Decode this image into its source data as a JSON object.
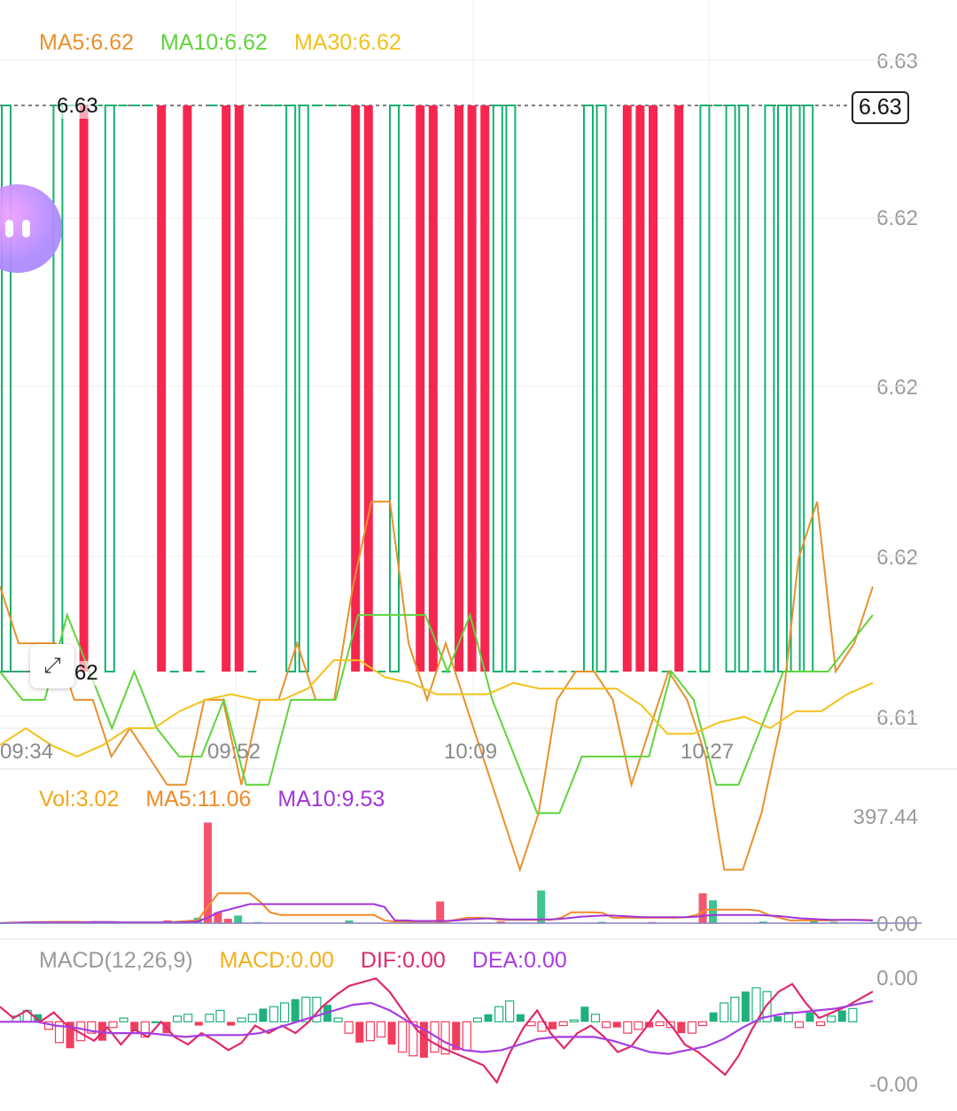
{
  "colors": {
    "up": "#f6274f",
    "down": "#10b26f",
    "ma5": "#e8912c",
    "ma10": "#5fd43a",
    "ma30": "#f2c21a",
    "vol": "#f2a81a",
    "vol_ma5": "#ef8b2a",
    "vol_ma10": "#a236d6",
    "macd": "#f2b01a",
    "dif": "#e0286e",
    "dea": "#a83de0",
    "axis_text": "#9a9a9a",
    "grid": "#eeeeee"
  },
  "legend_main": [
    {
      "label": "MA5:6.62",
      "color_key": "ma5"
    },
    {
      "label": "MA10:6.62",
      "color_key": "ma10"
    },
    {
      "label": "MA30:6.62",
      "color_key": "ma30"
    }
  ],
  "legend_volume": [
    {
      "label": "Vol:3.02",
      "color_key": "vol"
    },
    {
      "label": "MA5:11.06",
      "color_key": "vol_ma5"
    },
    {
      "label": "MA10:9.53",
      "color_key": "vol_ma10"
    }
  ],
  "legend_macd": [
    {
      "label": "MACD(12,26,9)",
      "color_key": "axis_text"
    },
    {
      "label": "MACD:0.00",
      "color_key": "macd"
    },
    {
      "label": "DIF:0.00",
      "color_key": "dif"
    },
    {
      "label": "DEA:0.00",
      "color_key": "dea"
    }
  ],
  "price_axis": {
    "labels": [
      "6.63",
      "6.62",
      "6.62",
      "6.62",
      "6.61"
    ]
  },
  "current_price": "6.63",
  "high_marker": "6.63",
  "low_marker": "6.62",
  "volume_axis": {
    "top": "397.44",
    "bottom": "0.00"
  },
  "macd_axis": {
    "top": "0.00",
    "bottom": "-0.00"
  },
  "time_labels": [
    "09:34",
    "09:52",
    "10:09",
    "10:27"
  ],
  "float_button_icon": "chat-bubble-icon",
  "expand_button_icon": "expand-arrows-icon",
  "chart_data": {
    "type": "candlestick",
    "price_range": [
      6.61,
      6.63
    ],
    "candles": [
      {
        "dir": "down",
        "open": 6.63,
        "close": 6.62
      },
      {
        "dir": "flat",
        "price": 6.62
      },
      {
        "dir": "flat",
        "price": 6.62
      },
      {
        "dir": "flat",
        "price": 6.62
      },
      {
        "dir": "down",
        "open": 6.63,
        "close": 6.62
      },
      {
        "dir": "flat",
        "price": 6.63
      },
      {
        "dir": "up",
        "open": 6.62,
        "close": 6.63
      },
      {
        "dir": "flat",
        "price": 6.63
      },
      {
        "dir": "down",
        "open": 6.63,
        "close": 6.62
      },
      {
        "dir": "flat",
        "price": 6.63
      },
      {
        "dir": "flat",
        "price": 6.63
      },
      {
        "dir": "flat",
        "price": 6.63
      },
      {
        "dir": "up",
        "open": 6.62,
        "close": 6.63
      },
      {
        "dir": "flat",
        "price": 6.62
      },
      {
        "dir": "up",
        "open": 6.62,
        "close": 6.63
      },
      {
        "dir": "flat",
        "price": 6.62
      },
      {
        "dir": "flat",
        "price": 6.63
      },
      {
        "dir": "up",
        "open": 6.62,
        "close": 6.63
      },
      {
        "dir": "up",
        "open": 6.62,
        "close": 6.63
      },
      {
        "dir": "flat",
        "price": 6.62
      },
      {
        "dir": "flat",
        "price": 6.63
      },
      {
        "dir": "flat",
        "price": 6.63
      },
      {
        "dir": "down",
        "open": 6.63,
        "close": 6.62
      },
      {
        "dir": "down",
        "open": 6.63,
        "close": 6.62
      },
      {
        "dir": "flat",
        "price": 6.63
      },
      {
        "dir": "flat",
        "price": 6.63
      },
      {
        "dir": "flat",
        "price": 6.63
      },
      {
        "dir": "up",
        "open": 6.62,
        "close": 6.63
      },
      {
        "dir": "up",
        "open": 6.62,
        "close": 6.63
      },
      {
        "dir": "flat",
        "price": 6.62
      },
      {
        "dir": "down",
        "open": 6.63,
        "close": 6.62
      },
      {
        "dir": "flat",
        "price": 6.63
      },
      {
        "dir": "up",
        "open": 6.62,
        "close": 6.63
      },
      {
        "dir": "up",
        "open": 6.62,
        "close": 6.63
      },
      {
        "dir": "flat",
        "price": 6.62
      },
      {
        "dir": "up",
        "open": 6.62,
        "close": 6.63
      },
      {
        "dir": "up",
        "open": 6.62,
        "close": 6.63
      },
      {
        "dir": "up",
        "open": 6.62,
        "close": 6.63
      },
      {
        "dir": "down",
        "open": 6.63,
        "close": 6.62
      },
      {
        "dir": "down",
        "open": 6.63,
        "close": 6.62
      },
      {
        "dir": "flat",
        "price": 6.62
      },
      {
        "dir": "flat",
        "price": 6.62
      },
      {
        "dir": "flat",
        "price": 6.62
      },
      {
        "dir": "flat",
        "price": 6.62
      },
      {
        "dir": "flat",
        "price": 6.62
      },
      {
        "dir": "down",
        "open": 6.63,
        "close": 6.62
      },
      {
        "dir": "down",
        "open": 6.63,
        "close": 6.62
      },
      {
        "dir": "flat",
        "price": 6.62
      },
      {
        "dir": "up",
        "open": 6.62,
        "close": 6.63
      },
      {
        "dir": "up",
        "open": 6.62,
        "close": 6.63
      },
      {
        "dir": "up",
        "open": 6.62,
        "close": 6.63
      },
      {
        "dir": "flat",
        "price": 6.62
      },
      {
        "dir": "up",
        "open": 6.62,
        "close": 6.63
      },
      {
        "dir": "flat",
        "price": 6.62
      },
      {
        "dir": "down",
        "open": 6.63,
        "close": 6.62
      },
      {
        "dir": "flat",
        "price": 6.63
      },
      {
        "dir": "down",
        "open": 6.63,
        "close": 6.62
      },
      {
        "dir": "down",
        "open": 6.63,
        "close": 6.62
      },
      {
        "dir": "flat",
        "price": 6.62
      },
      {
        "dir": "down",
        "open": 6.63,
        "close": 6.62
      },
      {
        "dir": "down",
        "open": 6.63,
        "close": 6.62
      },
      {
        "dir": "down",
        "open": 6.63,
        "close": 6.62
      },
      {
        "dir": "down",
        "open": 6.63,
        "close": 6.62
      }
    ],
    "ma5": [
      6.6215,
      6.6205,
      6.6205,
      6.6205,
      6.6195,
      6.6195,
      6.6185,
      6.619,
      6.6185,
      6.618,
      6.618,
      6.6195,
      6.6195,
      6.618,
      6.6195,
      6.6195,
      6.6205,
      6.6195,
      6.6195,
      6.6215,
      6.623,
      6.623,
      6.6205,
      6.6195,
      6.6205,
      6.6195,
      6.6185,
      6.6175,
      6.6165,
      6.6175,
      6.6195,
      6.62,
      6.62,
      6.6195,
      6.618,
      6.619,
      6.62,
      6.6195,
      6.6185,
      6.6165,
      6.6165,
      6.6175,
      6.619,
      6.622,
      6.623,
      6.62,
      6.6205,
      6.6215
    ],
    "ma10": [
      6.62,
      6.6195,
      6.6195,
      6.621,
      6.62,
      6.619,
      6.62,
      6.619,
      6.6185,
      6.6185,
      6.6195,
      6.618,
      6.618,
      6.6195,
      6.6195,
      6.6195,
      6.621,
      6.621,
      6.621,
      6.621,
      6.62,
      6.621,
      6.6195,
      6.6185,
      6.6175,
      6.6175,
      6.6185,
      6.6185,
      6.6185,
      6.6185,
      6.62,
      6.6195,
      6.618,
      6.618,
      6.619,
      6.62,
      6.62,
      6.62,
      6.6205,
      6.621
    ],
    "ma30": [
      6.6187,
      6.619,
      6.6187,
      6.6185,
      6.6187,
      6.619,
      6.619,
      6.6193,
      6.6195,
      6.6196,
      6.6195,
      6.6195,
      6.6197,
      6.6202,
      6.6202,
      6.6199,
      6.6198,
      6.6196,
      6.6196,
      6.6196,
      6.6198,
      6.6197,
      6.6197,
      6.6197,
      6.6197,
      6.6194,
      6.6189,
      6.6189,
      6.6191,
      6.6192,
      6.619,
      6.6193,
      6.6193,
      6.6196,
      6.6198
    ]
  },
  "volume_data": {
    "max": 397.44,
    "bars": [
      {
        "i": 0,
        "v": 4,
        "dir": "down"
      },
      {
        "i": 7,
        "v": 8,
        "dir": "up"
      },
      {
        "i": 16,
        "v": 10,
        "dir": "up"
      },
      {
        "i": 19,
        "v": 20,
        "dir": "down"
      },
      {
        "i": 20,
        "v": 370,
        "dir": "up"
      },
      {
        "i": 21,
        "v": 40,
        "dir": "up"
      },
      {
        "i": 22,
        "v": 16,
        "dir": "up"
      },
      {
        "i": 23,
        "v": 28,
        "dir": "down"
      },
      {
        "i": 25,
        "v": 4,
        "dir": "down"
      },
      {
        "i": 34,
        "v": 10,
        "dir": "down"
      },
      {
        "i": 40,
        "v": 8,
        "dir": "down"
      },
      {
        "i": 43,
        "v": 80,
        "dir": "up"
      },
      {
        "i": 49,
        "v": 6,
        "dir": "up"
      },
      {
        "i": 53,
        "v": 120,
        "dir": "down"
      },
      {
        "i": 59,
        "v": 5,
        "dir": "down"
      },
      {
        "i": 64,
        "v": 4,
        "dir": "up"
      },
      {
        "i": 69,
        "v": 110,
        "dir": "up"
      },
      {
        "i": 70,
        "v": 84,
        "dir": "down"
      },
      {
        "i": 75,
        "v": 6,
        "dir": "down"
      },
      {
        "i": 80,
        "v": 8,
        "dir": "down"
      },
      {
        "i": 82,
        "v": 5,
        "dir": "down"
      },
      {
        "i": 86,
        "v": 4,
        "dir": "down"
      }
    ],
    "ma5": [
      0,
      2,
      3,
      4,
      4,
      5,
      5,
      5,
      4,
      4,
      4,
      3,
      3,
      3,
      3,
      3,
      3,
      5,
      8,
      10,
      60,
      110,
      110,
      110,
      110,
      80,
      40,
      30,
      30,
      30,
      30,
      30,
      30,
      30,
      30,
      30,
      30,
      10,
      6,
      6,
      6,
      6,
      6,
      6,
      14,
      20,
      20,
      18,
      12,
      12,
      12,
      12,
      12,
      12,
      20,
      40,
      40,
      40,
      38,
      20,
      20,
      20,
      20,
      20,
      20,
      20,
      22,
      30,
      50,
      50,
      50,
      50,
      50,
      46,
      30,
      20,
      10,
      10,
      10,
      10,
      10,
      12,
      12,
      12,
      11
    ],
    "ma10": [
      0,
      1,
      2,
      3,
      3,
      3,
      3,
      3,
      3,
      4,
      4,
      4,
      3,
      3,
      3,
      3,
      3,
      3,
      4,
      6,
      20,
      40,
      50,
      60,
      70,
      70,
      70,
      70,
      70,
      70,
      70,
      70,
      70,
      70,
      70,
      70,
      70,
      60,
      10,
      10,
      8,
      8,
      8,
      8,
      10,
      14,
      16,
      18,
      16,
      14,
      14,
      14,
      14,
      14,
      16,
      20,
      24,
      26,
      28,
      28,
      26,
      24,
      22,
      22,
      22,
      22,
      22,
      24,
      28,
      30,
      30,
      30,
      30,
      30,
      28,
      26,
      22,
      18,
      16,
      14,
      12,
      12,
      12,
      11,
      10
    ]
  },
  "macd_data": {
    "bars": [
      0.0,
      0.3,
      0.6,
      0.4,
      -0.4,
      -1.1,
      -1.4,
      -1.0,
      -0.6,
      -1.0,
      -0.3,
      0.2,
      -0.5,
      -0.8,
      0.0,
      -0.6,
      0.3,
      0.4,
      -0.2,
      0.4,
      0.6,
      -0.2,
      0.2,
      0.4,
      0.7,
      0.8,
      1.0,
      1.2,
      1.3,
      1.3,
      0.9,
      0.2,
      -0.6,
      -1.1,
      -1.0,
      -0.8,
      -1.2,
      -1.6,
      -1.8,
      -1.9,
      -1.6,
      -1.7,
      -1.5,
      -1.5,
      0.2,
      0.4,
      0.8,
      1.1,
      0.4,
      -0.2,
      -0.5,
      -0.4,
      -0.2,
      0.1,
      0.8,
      0.4,
      -0.3,
      -0.3,
      -0.6,
      -0.4,
      -0.3,
      -0.2,
      -0.3,
      -0.6,
      -0.6,
      -0.2,
      0.5,
      1.0,
      1.3,
      1.6,
      1.8,
      1.6,
      0.3,
      0.5,
      -0.3,
      0.5,
      -0.2,
      0.3,
      0.6,
      0.7
    ],
    "dif": [
      0.8,
      0.2,
      0.6,
      0.0,
      0.5,
      -0.2,
      -0.6,
      -1.0,
      -0.3,
      -1.2,
      -0.4,
      -0.8,
      0.0,
      -0.8,
      -1.2,
      -0.6,
      -1.0,
      -1.5,
      -1.1,
      -0.2,
      -0.6,
      -0.2,
      -0.6,
      0.0,
      0.8,
      1.4,
      1.9,
      2.1,
      2.3,
      1.6,
      0.6,
      -0.4,
      -1.0,
      -1.4,
      -1.7,
      -2.0,
      -2.3,
      -3.2,
      -1.6,
      -0.3,
      0.6,
      -0.6,
      -1.4,
      -0.6,
      -0.2,
      -0.8,
      -1.6,
      -1.3,
      -0.4,
      0.6,
      -0.2,
      -1.2,
      -1.6,
      -2.2,
      -2.8,
      -1.8,
      -0.4,
      0.8,
      1.6,
      2.0,
      1.0,
      0.2,
      0.5,
      0.8,
      1.2,
      1.6
    ],
    "dea": [
      0.0,
      0.0,
      0.0,
      -0.2,
      -0.3,
      -0.5,
      -0.6,
      -0.6,
      -0.6,
      -0.7,
      -0.8,
      -0.7,
      -0.7,
      -0.7,
      -0.6,
      -0.3,
      0.0,
      0.3,
      0.6,
      0.9,
      1.0,
      0.6,
      0.0,
      -0.5,
      -1.1,
      -1.5,
      -1.6,
      -1.5,
      -1.2,
      -0.9,
      -0.8,
      -0.8,
      -0.8,
      -1.0,
      -1.3,
      -1.6,
      -1.7,
      -1.5,
      -1.3,
      -0.9,
      -0.3,
      0.2,
      0.4,
      0.5,
      0.6,
      0.7,
      0.9,
      1.1
    ],
    "range": [
      -3.5,
      2.5
    ]
  }
}
